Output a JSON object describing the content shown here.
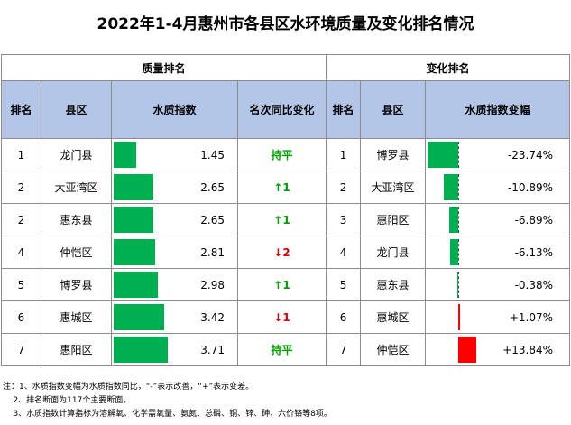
{
  "title": "2022年1-4月惠州市各县区水环境质量及变化排名情况",
  "groups": {
    "quality": "质量排名",
    "change": "变化排名"
  },
  "headers": {
    "rank": "排名",
    "district": "县区",
    "index": "水质指数",
    "yoy": "名次同比变化",
    "rank2": "排名",
    "district2": "县区",
    "index_change": "水质指数变幅"
  },
  "quality": [
    {
      "rank": "1",
      "district": "龙门县",
      "index": "1.45",
      "change": "持平",
      "dir": "flat"
    },
    {
      "rank": "2",
      "district": "大亚湾区",
      "index": "2.65",
      "change": "↑1",
      "dir": "up"
    },
    {
      "rank": "2",
      "district": "惠东县",
      "index": "2.65",
      "change": "↑1",
      "dir": "up"
    },
    {
      "rank": "4",
      "district": "仲恺区",
      "index": "2.81",
      "change": "↓2",
      "dir": "down"
    },
    {
      "rank": "5",
      "district": "博罗县",
      "index": "2.98",
      "change": "↑1",
      "dir": "up"
    },
    {
      "rank": "6",
      "district": "惠城区",
      "index": "3.42",
      "change": "↓1",
      "dir": "down"
    },
    {
      "rank": "7",
      "district": "惠阳区",
      "index": "3.71",
      "change": "持平",
      "dir": "flat"
    }
  ],
  "change": [
    {
      "rank": "1",
      "district": "博罗县",
      "pct": "-23.74%",
      "value": -23.74
    },
    {
      "rank": "2",
      "district": "大亚湾区",
      "pct": "-10.89%",
      "value": -10.89
    },
    {
      "rank": "3",
      "district": "惠阳区",
      "pct": "-6.89%",
      "value": -6.89
    },
    {
      "rank": "4",
      "district": "龙门县",
      "pct": "-6.13%",
      "value": -6.13
    },
    {
      "rank": "5",
      "district": "惠东县",
      "pct": "-0.38%",
      "value": -0.38
    },
    {
      "rank": "6",
      "district": "惠城区",
      "pct": "+1.07%",
      "value": 1.07
    },
    {
      "rank": "7",
      "district": "仲恺区",
      "pct": "+13.84%",
      "value": 13.84
    }
  ],
  "colors": {
    "header_bg": "#b4c6e7",
    "bar_good": "#00b050",
    "bar_bad": "#ff0000",
    "up": "#00a000",
    "down": "#e00000"
  },
  "notes": [
    "注：1、水质指数变幅为水质指数同比，“-”表示改善，“+”表示变差。",
    "    2、排名断面为117个主要断面。",
    "    3、水质指数计算指标为溶解氧、化学需氧量、氨氮、总磷、铜、锌、砷、六价铬等8项。"
  ]
}
